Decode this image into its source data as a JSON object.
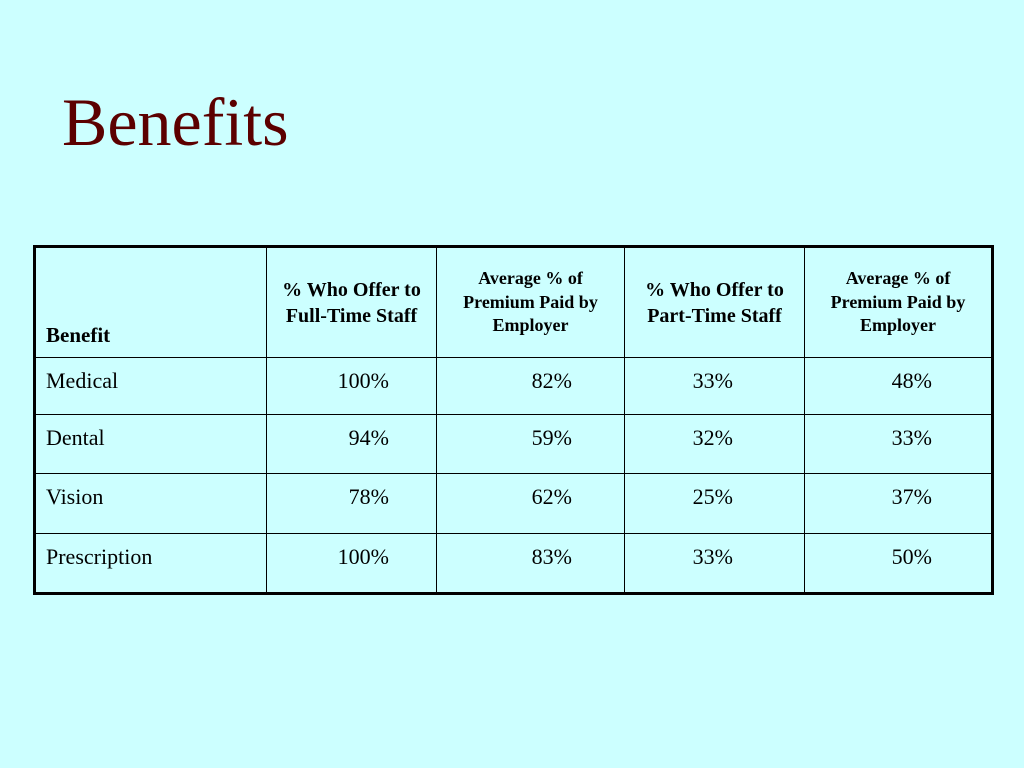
{
  "header": {
    "title": "Benefits"
  },
  "table": {
    "columns": [
      "Benefit",
      "% Who Offer to Full-Time Staff",
      "Average % of Premium Paid by Employer",
      "% Who Offer to Part-Time Staff",
      "Average % of Premium Paid by Employer"
    ],
    "rows": [
      [
        "Medical",
        "100%",
        "82%",
        "33%",
        "48%"
      ],
      [
        "Dental",
        "94%",
        "59%",
        "32%",
        "33%"
      ],
      [
        "Vision",
        "78%",
        "62%",
        "25%",
        "37%"
      ],
      [
        "Prescription",
        "100%",
        "83%",
        "33%",
        "50%"
      ]
    ]
  }
}
